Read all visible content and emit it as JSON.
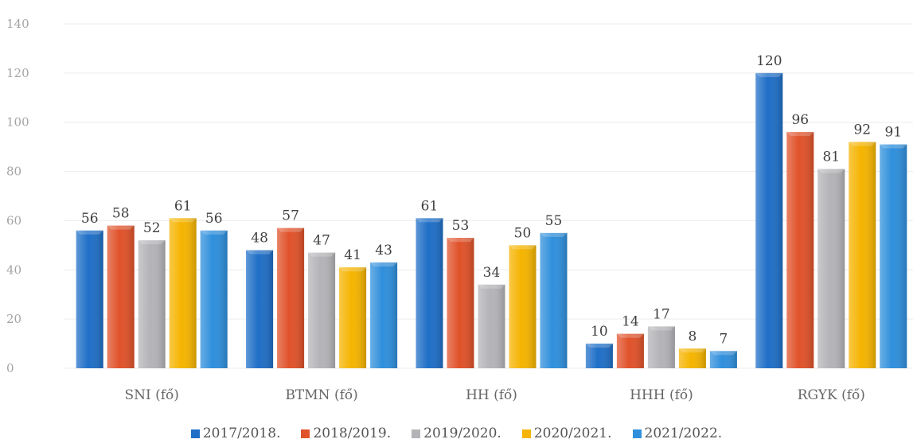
{
  "chart_data": {
    "type": "bar",
    "categories": [
      "SNI (fő)",
      "BTMN (fő)",
      "HH (fő)",
      "HHH (fő)",
      "RGYK (fő)"
    ],
    "series": [
      {
        "name": "2017/2018.",
        "color": "#1f6fc7",
        "values": [
          56,
          48,
          61,
          10,
          120
        ]
      },
      {
        "name": "2018/2019.",
        "color": "#e0522a",
        "values": [
          58,
          57,
          53,
          14,
          96
        ]
      },
      {
        "name": "2019/2020.",
        "color": "#b4b4b8",
        "values": [
          52,
          47,
          34,
          17,
          81
        ]
      },
      {
        "name": "2020/2021.",
        "color": "#f5b400",
        "values": [
          61,
          41,
          50,
          8,
          92
        ]
      },
      {
        "name": "2021/2022.",
        "color": "#2f8fdc",
        "values": [
          56,
          43,
          55,
          7,
          91
        ]
      }
    ],
    "yticks": [
      0,
      20,
      40,
      60,
      80,
      100,
      120,
      140
    ],
    "ylim": [
      0,
      140
    ],
    "grid": true,
    "legend_position": "bottom"
  }
}
